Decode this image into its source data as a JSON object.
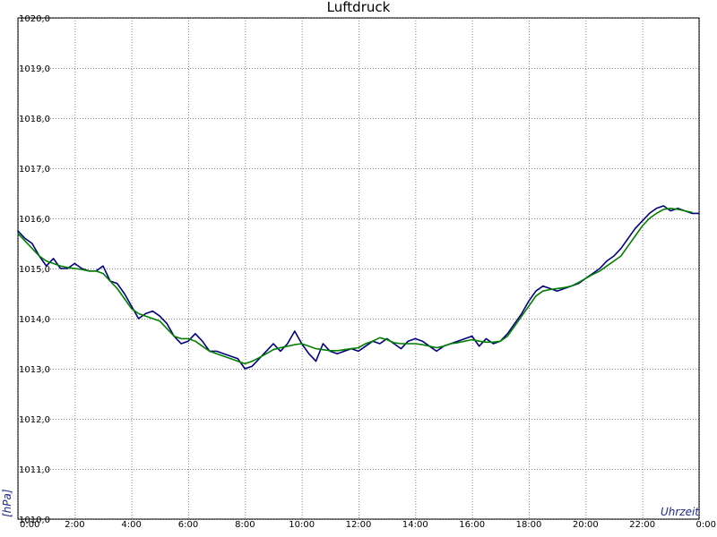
{
  "chart_data": {
    "type": "line",
    "title": "Luftdruck",
    "xlabel": "Uhrzeit",
    "ylabel": "[hPa]",
    "xlim": [
      0,
      24
    ],
    "ylim": [
      1010.0,
      1020.0
    ],
    "grid": true,
    "x_tick_labels": [
      "0:00",
      "2:00",
      "4:00",
      "6:00",
      "8:00",
      "10:00",
      "12:00",
      "14:00",
      "16:00",
      "18:00",
      "20:00",
      "22:00",
      "0:00"
    ],
    "x_tick_values": [
      0,
      2,
      4,
      6,
      8,
      10,
      12,
      14,
      16,
      18,
      20,
      22,
      24
    ],
    "y_tick_labels": [
      "1010,0",
      "1011,0",
      "1012,0",
      "1013,0",
      "1014,0",
      "1015,0",
      "1016,0",
      "1017,0",
      "1018,0",
      "1019,0",
      "1020,0"
    ],
    "y_tick_values": [
      1010,
      1011,
      1012,
      1013,
      1014,
      1015,
      1016,
      1017,
      1018,
      1019,
      1020
    ],
    "series": [
      {
        "color": "#000080",
        "x": [
          0.0,
          0.25,
          0.5,
          0.75,
          1.0,
          1.25,
          1.5,
          1.75,
          2.0,
          2.25,
          2.5,
          2.75,
          3.0,
          3.25,
          3.5,
          3.75,
          4.0,
          4.25,
          4.5,
          4.75,
          5.0,
          5.25,
          5.5,
          5.75,
          6.0,
          6.25,
          6.5,
          6.75,
          7.0,
          7.25,
          7.5,
          7.75,
          8.0,
          8.25,
          8.5,
          8.75,
          9.0,
          9.25,
          9.5,
          9.75,
          10.0,
          10.25,
          10.5,
          10.75,
          11.0,
          11.25,
          11.5,
          11.75,
          12.0,
          12.25,
          12.5,
          12.75,
          13.0,
          13.25,
          13.5,
          13.75,
          14.0,
          14.25,
          14.5,
          14.75,
          15.0,
          15.25,
          15.5,
          15.75,
          16.0,
          16.25,
          16.5,
          16.75,
          17.0,
          17.25,
          17.5,
          17.75,
          18.0,
          18.25,
          18.5,
          18.75,
          19.0,
          19.25,
          19.5,
          19.75,
          20.0,
          20.25,
          20.5,
          20.75,
          21.0,
          21.25,
          21.5,
          21.75,
          22.0,
          22.25,
          22.5,
          22.75,
          23.0,
          23.25,
          23.5,
          23.75,
          24.0
        ],
        "values": [
          1015.75,
          1015.6,
          1015.5,
          1015.25,
          1015.05,
          1015.2,
          1015.0,
          1015.0,
          1015.1,
          1015.0,
          1014.95,
          1014.95,
          1015.05,
          1014.75,
          1014.7,
          1014.5,
          1014.25,
          1014.0,
          1014.1,
          1014.15,
          1014.05,
          1013.9,
          1013.65,
          1013.5,
          1013.55,
          1013.7,
          1013.55,
          1013.35,
          1013.35,
          1013.3,
          1013.25,
          1013.2,
          1013.0,
          1013.05,
          1013.2,
          1013.35,
          1013.5,
          1013.35,
          1013.5,
          1013.75,
          1013.5,
          1013.3,
          1013.15,
          1013.5,
          1013.35,
          1013.3,
          1013.35,
          1013.4,
          1013.35,
          1013.45,
          1013.55,
          1013.5,
          1013.6,
          1013.5,
          1013.4,
          1013.55,
          1013.6,
          1013.55,
          1013.45,
          1013.35,
          1013.45,
          1013.5,
          1013.55,
          1013.6,
          1013.65,
          1013.45,
          1013.6,
          1013.5,
          1013.55,
          1013.7,
          1013.9,
          1014.1,
          1014.35,
          1014.55,
          1014.65,
          1014.6,
          1014.55,
          1014.6,
          1014.65,
          1014.7,
          1014.8,
          1014.9,
          1015.0,
          1015.15,
          1015.25,
          1015.4,
          1015.6,
          1015.8,
          1015.95,
          1016.1,
          1016.2,
          1016.25,
          1016.15,
          1016.2,
          1016.15,
          1016.1,
          1016.1
        ]
      },
      {
        "color": "#008000",
        "x": [
          0.0,
          0.25,
          0.5,
          0.75,
          1.0,
          1.25,
          1.5,
          1.75,
          2.0,
          2.25,
          2.5,
          2.75,
          3.0,
          3.25,
          3.5,
          3.75,
          4.0,
          4.25,
          4.5,
          4.75,
          5.0,
          5.25,
          5.5,
          5.75,
          6.0,
          6.25,
          6.5,
          6.75,
          7.0,
          7.25,
          7.5,
          7.75,
          8.0,
          8.25,
          8.5,
          8.75,
          9.0,
          9.25,
          9.5,
          9.75,
          10.0,
          10.25,
          10.5,
          10.75,
          11.0,
          11.25,
          11.5,
          11.75,
          12.0,
          12.25,
          12.5,
          12.75,
          13.0,
          13.25,
          13.5,
          13.75,
          14.0,
          14.25,
          14.5,
          14.75,
          15.0,
          15.25,
          15.5,
          15.75,
          16.0,
          16.25,
          16.5,
          16.75,
          17.0,
          17.25,
          17.5,
          17.75,
          18.0,
          18.25,
          18.5,
          18.75,
          19.0,
          19.25,
          19.5,
          19.75,
          20.0,
          20.25,
          20.5,
          20.75,
          21.0,
          21.25,
          21.5,
          21.75,
          22.0,
          22.25,
          22.5,
          22.75,
          23.0,
          23.25,
          23.5,
          23.75
        ],
        "values": [
          1015.7,
          1015.55,
          1015.4,
          1015.25,
          1015.15,
          1015.1,
          1015.05,
          1015.02,
          1015.0,
          1014.98,
          1014.95,
          1014.95,
          1014.9,
          1014.75,
          1014.6,
          1014.4,
          1014.2,
          1014.1,
          1014.05,
          1014.0,
          1013.95,
          1013.8,
          1013.65,
          1013.6,
          1013.6,
          1013.55,
          1013.45,
          1013.35,
          1013.3,
          1013.25,
          1013.2,
          1013.15,
          1013.1,
          1013.15,
          1013.22,
          1013.3,
          1013.38,
          1013.42,
          1013.45,
          1013.48,
          1013.5,
          1013.45,
          1013.4,
          1013.38,
          1013.36,
          1013.36,
          1013.38,
          1013.4,
          1013.42,
          1013.5,
          1013.55,
          1013.62,
          1013.58,
          1013.52,
          1013.5,
          1013.5,
          1013.5,
          1013.48,
          1013.45,
          1013.42,
          1013.45,
          1013.5,
          1013.52,
          1013.55,
          1013.58,
          1013.55,
          1013.53,
          1013.53,
          1013.55,
          1013.65,
          1013.85,
          1014.05,
          1014.25,
          1014.45,
          1014.55,
          1014.58,
          1014.6,
          1014.62,
          1014.65,
          1014.72,
          1014.8,
          1014.88,
          1014.95,
          1015.05,
          1015.15,
          1015.25,
          1015.45,
          1015.65,
          1015.85,
          1016.0,
          1016.1,
          1016.18,
          1016.2,
          1016.18,
          1016.15,
          1016.12
        ]
      }
    ]
  }
}
